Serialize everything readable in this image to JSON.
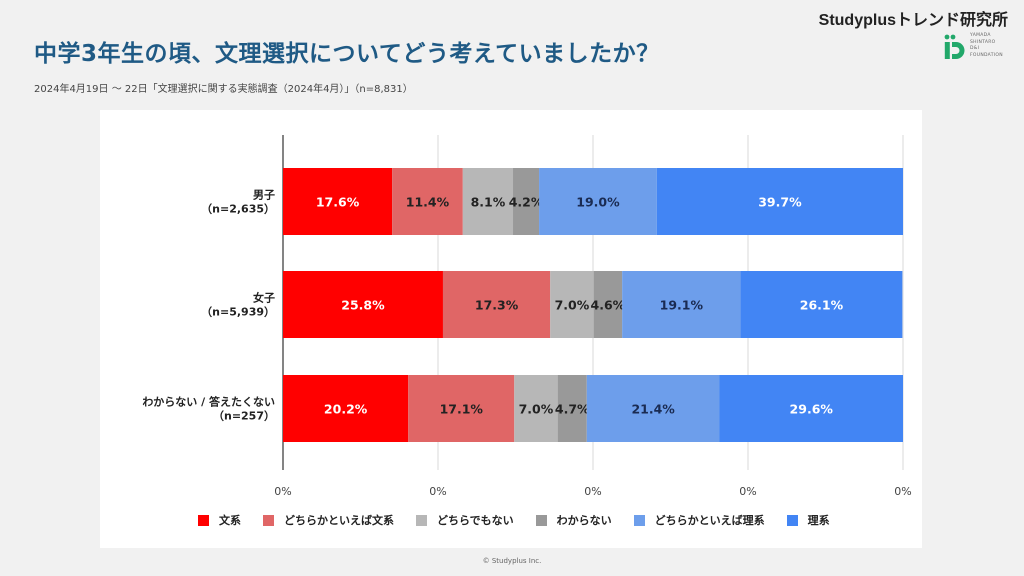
{
  "header": {
    "title": "中学3年生の頃、文理選択についてどう考えていましたか？",
    "subtitle": "2024年4月19日 〜 22日「文理選択に関する実態調査（2024年4月）」（n=8,831）",
    "brand": "Studyplusトレンド研究所",
    "logo_text": "YAMADA\nSHINTARO\nD&I\nFOUNDATION"
  },
  "footer": {
    "copyright": "© Studyplus Inc."
  },
  "chart_data": {
    "type": "bar",
    "orientation": "horizontal",
    "stacked": true,
    "normalized": true,
    "title": "中学3年生の頃、文理選択についてどう考えていましたか？",
    "xlabel": "",
    "ylabel": "",
    "xlim": [
      0,
      100
    ],
    "x_ticks": [
      "0%",
      "0%",
      "0%",
      "0%",
      "0%"
    ],
    "grid": true,
    "legend_position": "bottom",
    "categories": [
      {
        "label": "男子",
        "sublabel": "（n=2,635）"
      },
      {
        "label": "女子",
        "sublabel": "（n=5,939）"
      },
      {
        "label": "わからない / 答えたくない",
        "sublabel": "（n=257）"
      }
    ],
    "series": [
      {
        "name": "文系",
        "color": "#ff0000",
        "label_color": "#ffffff",
        "values": [
          17.6,
          25.8,
          20.2
        ]
      },
      {
        "name": "どちらかといえば文系",
        "color": "#e06666",
        "label_color": "#222222",
        "values": [
          11.4,
          17.3,
          17.1
        ]
      },
      {
        "name": "どちらでもない",
        "color": "#b7b7b7",
        "label_color": "#222222",
        "values": [
          8.1,
          7.0,
          7.0
        ]
      },
      {
        "name": "わからない",
        "color": "#999999",
        "label_color": "#222222",
        "values": [
          4.2,
          4.6,
          4.7
        ]
      },
      {
        "name": "どちらかといえば理系",
        "color": "#6d9eeb",
        "label_color": "#1a2b52",
        "values": [
          19.0,
          19.1,
          21.4
        ]
      },
      {
        "name": "理系",
        "color": "#4285f4",
        "label_color": "#ffffff",
        "values": [
          39.7,
          26.1,
          29.6
        ]
      }
    ]
  }
}
